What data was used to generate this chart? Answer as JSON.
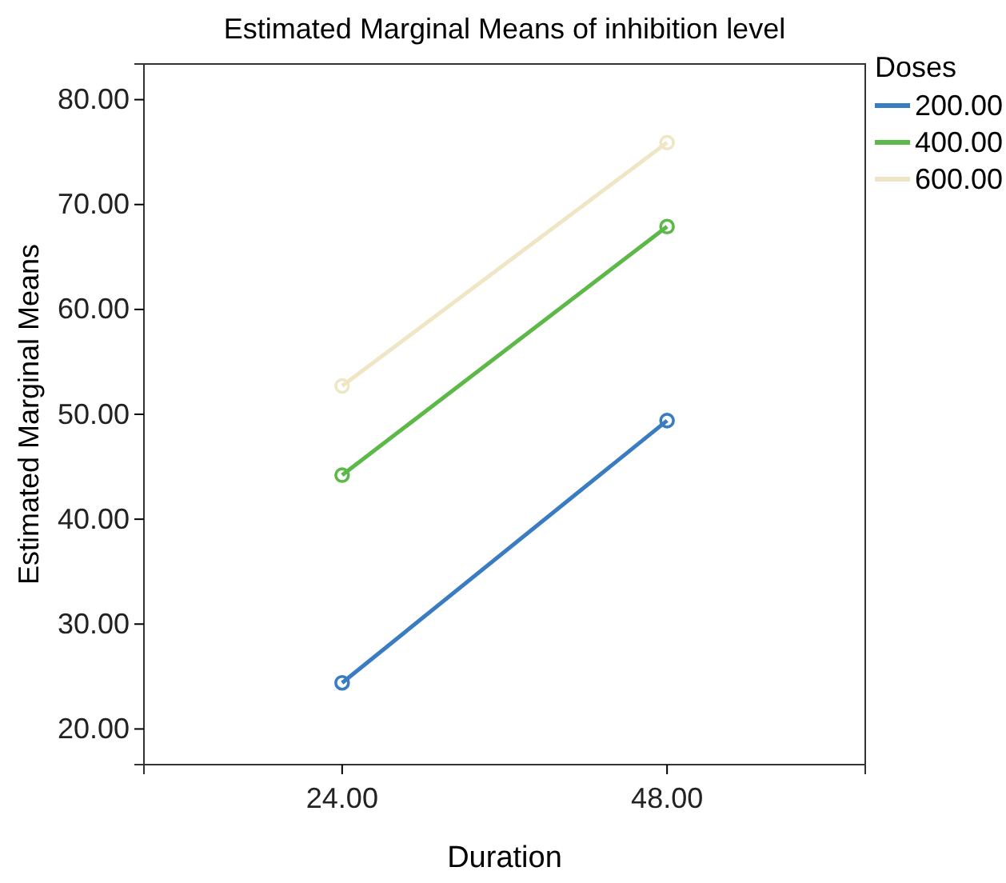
{
  "chart_data": {
    "type": "line",
    "title": "Estimated Marginal Means of inhibition level",
    "xlabel": "Duration",
    "ylabel": "Estimated Marginal Means",
    "legend_title": "Doses",
    "categories": [
      "24.00",
      "48.00"
    ],
    "series": [
      {
        "name": "200.00",
        "color": "#3a7cc2",
        "values": [
          24.4,
          49.4
        ]
      },
      {
        "name": "400.00",
        "color": "#5cb847",
        "values": [
          44.2,
          67.9
        ]
      },
      {
        "name": "600.00",
        "color": "#efe6c6",
        "values": [
          52.7,
          75.9
        ]
      }
    ],
    "ylim": [
      16.6,
      83.4
    ],
    "yticks": [
      {
        "value": 20,
        "label": "20.00"
      },
      {
        "value": 30,
        "label": "30.00"
      },
      {
        "value": 40,
        "label": "40.00"
      },
      {
        "value": 50,
        "label": "50.00"
      },
      {
        "value": 60,
        "label": "60.00"
      },
      {
        "value": 70,
        "label": "70.00"
      },
      {
        "value": 80,
        "label": "80.00"
      }
    ],
    "marker": "circle",
    "line_style": "solid",
    "legend": "top right",
    "grid": false
  }
}
